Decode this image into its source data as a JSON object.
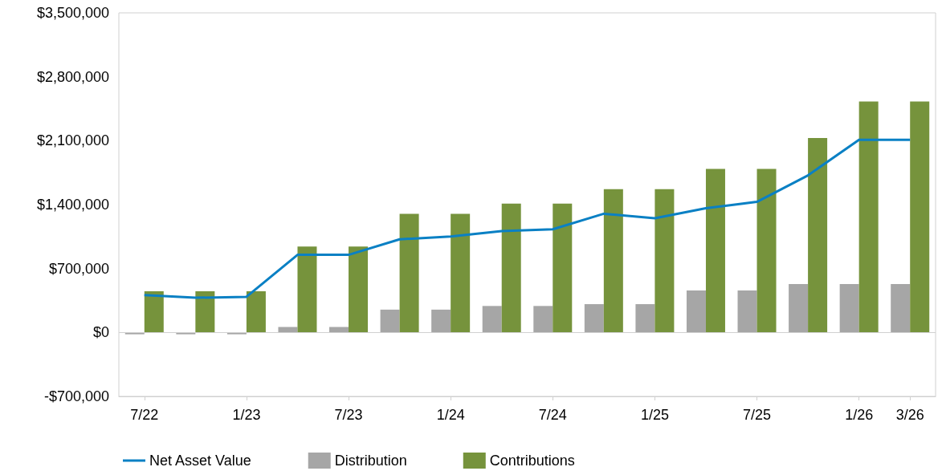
{
  "chart_data": {
    "type": "bar",
    "categories": [
      "7/22",
      null,
      "1/23",
      null,
      "7/23",
      null,
      "1/24",
      null,
      "7/24",
      null,
      "1/25",
      null,
      "7/25",
      null,
      "1/26",
      "3/26"
    ],
    "series": [
      {
        "name": "Net Asset Value",
        "type": "line",
        "color": "#0a80c4",
        "values": [
          410000,
          380000,
          390000,
          850000,
          850000,
          1020000,
          1050000,
          1110000,
          1130000,
          1300000,
          1250000,
          1360000,
          1430000,
          1720000,
          2110000,
          2110000
        ]
      },
      {
        "name": "Distribution",
        "color": "#a6a6a6",
        "values": [
          -20000,
          -20000,
          -20000,
          60000,
          60000,
          250000,
          250000,
          290000,
          290000,
          310000,
          310000,
          460000,
          460000,
          530000,
          530000,
          530000
        ]
      },
      {
        "name": "Contributions",
        "color": "#76933c",
        "values": [
          450000,
          450000,
          450000,
          940000,
          940000,
          1300000,
          1300000,
          1410000,
          1410000,
          1570000,
          1570000,
          1790000,
          1790000,
          2130000,
          2530000,
          2530000
        ]
      }
    ],
    "ylim": [
      -700000,
      3500000
    ],
    "yticks": [
      {
        "value": -700000,
        "label": "-$700,000"
      },
      {
        "value": 0,
        "label": "$0"
      },
      {
        "value": 700000,
        "label": "$700,000"
      },
      {
        "value": 1400000,
        "label": "$1,400,000"
      },
      {
        "value": 2100000,
        "label": "$2,100,000"
      },
      {
        "value": 2800000,
        "label": "$2,800,000"
      },
      {
        "value": 3500000,
        "label": "$3,500,000"
      }
    ],
    "ref_lines": [
      {
        "axis": "y",
        "value": 0,
        "color": "#d0d0d0"
      }
    ],
    "legend": "bottom left",
    "marker": "none"
  }
}
